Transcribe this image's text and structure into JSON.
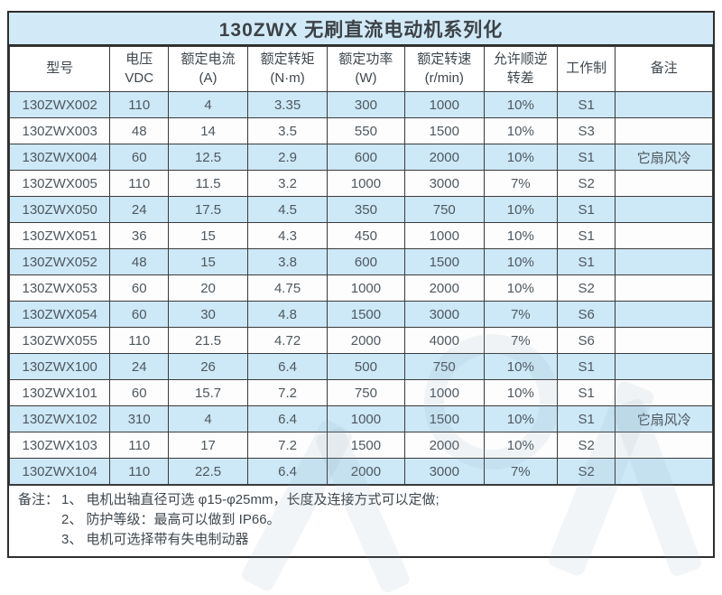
{
  "title": "130ZWX 无刷直流电动机系列化",
  "table": {
    "columns": [
      {
        "id": "model",
        "label": "型号",
        "label2": ""
      },
      {
        "id": "voltage",
        "label": "电压",
        "label2": "VDC"
      },
      {
        "id": "current",
        "label": "额定电流",
        "label2": "(A)"
      },
      {
        "id": "torque",
        "label": "额定转矩",
        "label2": "(N·m)"
      },
      {
        "id": "power",
        "label": "额定功率",
        "label2": "(W)"
      },
      {
        "id": "speed",
        "label": "额定转速",
        "label2": "(r/min)"
      },
      {
        "id": "slip",
        "label": "允许顺逆",
        "label2": "转差"
      },
      {
        "id": "duty",
        "label": "工作制",
        "label2": ""
      },
      {
        "id": "remark",
        "label": "备注",
        "label2": ""
      }
    ],
    "rows": [
      [
        "130ZWX002",
        "110",
        "4",
        "3.35",
        "300",
        "1000",
        "10%",
        "S1",
        ""
      ],
      [
        "130ZWX003",
        "48",
        "14",
        "3.5",
        "550",
        "1500",
        "10%",
        "S3",
        ""
      ],
      [
        "130ZWX004",
        "60",
        "12.5",
        "2.9",
        "600",
        "2000",
        "10%",
        "S1",
        "它扇风冷"
      ],
      [
        "130ZWX005",
        "110",
        "11.5",
        "3.2",
        "1000",
        "3000",
        "7%",
        "S2",
        ""
      ],
      [
        "130ZWX050",
        "24",
        "17.5",
        "4.5",
        "350",
        "750",
        "10%",
        "S1",
        ""
      ],
      [
        "130ZWX051",
        "36",
        "15",
        "4.3",
        "450",
        "1000",
        "10%",
        "S1",
        ""
      ],
      [
        "130ZWX052",
        "48",
        "15",
        "3.8",
        "600",
        "1500",
        "10%",
        "S1",
        ""
      ],
      [
        "130ZWX053",
        "60",
        "20",
        "4.75",
        "1000",
        "2000",
        "10%",
        "S2",
        ""
      ],
      [
        "130ZWX054",
        "60",
        "30",
        "4.8",
        "1500",
        "3000",
        "7%",
        "S6",
        ""
      ],
      [
        "130ZWX055",
        "110",
        "21.5",
        "4.72",
        "2000",
        "4000",
        "7%",
        "S6",
        ""
      ],
      [
        "130ZWX100",
        "24",
        "26",
        "6.4",
        "500",
        "750",
        "10%",
        "S1",
        ""
      ],
      [
        "130ZWX101",
        "60",
        "15.7",
        "7.2",
        "750",
        "1000",
        "10%",
        "S1",
        ""
      ],
      [
        "130ZWX102",
        "310",
        "4",
        "6.4",
        "1000",
        "1500",
        "10%",
        "S1",
        "它扇风冷"
      ],
      [
        "130ZWX103",
        "110",
        "17",
        "7.2",
        "1500",
        "2000",
        "10%",
        "S2",
        ""
      ],
      [
        "130ZWX104",
        "110",
        "22.5",
        "6.4",
        "2000",
        "3000",
        "7%",
        "S2",
        ""
      ]
    ]
  },
  "notes": {
    "prefix": "备注：",
    "items": [
      "1、 电机出轴直径可选 φ15-φ25mm，长度及连接方式可以定做;",
      "2、 防护等级：最高可以做到 IP66。",
      "3、 电机可选择带有失电制动器"
    ]
  },
  "colors": {
    "stripe_blue": "#cde8f6",
    "title_bg": "#d2eaf7",
    "border": "#3b3b3b",
    "text": "#4c555c"
  }
}
